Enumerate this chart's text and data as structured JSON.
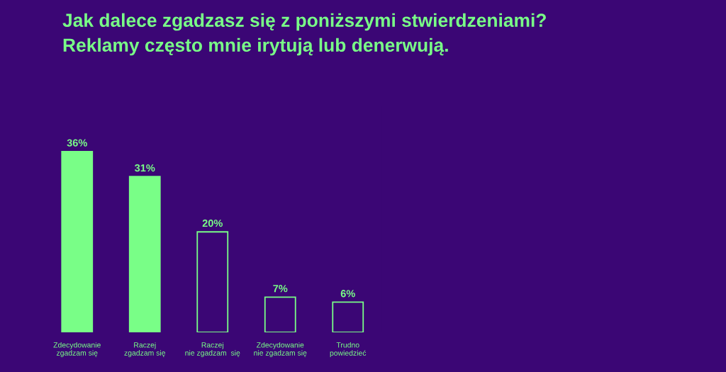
{
  "chart_data": {
    "type": "bar",
    "title": "Jak dalece zgadzasz się z poniższymi stwierdzeniami?",
    "subtitle": "Reklamy często mnie irytują lub denerwują.",
    "categories": [
      "Zdecydowanie\nzgadzam się",
      "Raczej\nzgadzam się",
      "Raczej\nnie zgadzam  się",
      "Zdecydowanie\nnie zgadzam się",
      "Trudno\npowiedzieć"
    ],
    "values": [
      36,
      31,
      20,
      7,
      6
    ],
    "value_labels": [
      "36%",
      "31%",
      "20%",
      "7%",
      "6%"
    ],
    "colors": [
      "#79fe87",
      "#79fe87",
      "#3b0675",
      "#3b0675",
      "#3b0675"
    ],
    "tick_labels": "x"
  }
}
